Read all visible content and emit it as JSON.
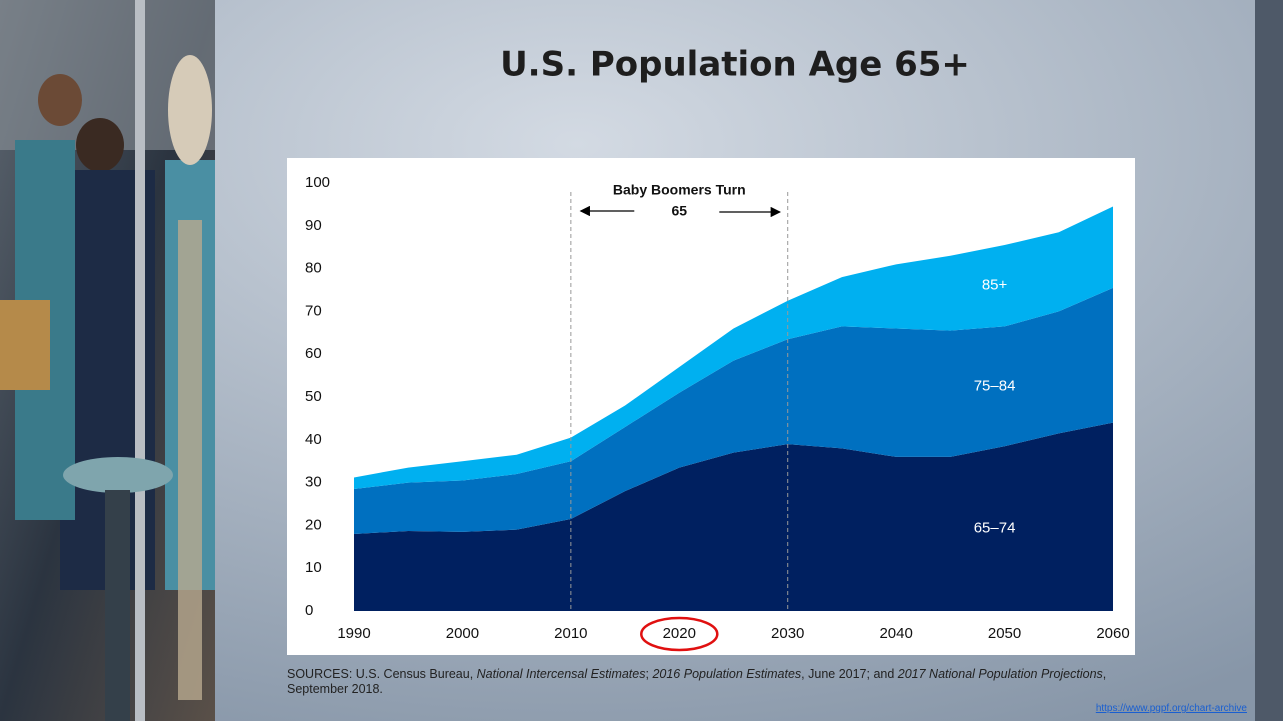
{
  "title": "U.S. Population Age 65+",
  "chart_data": {
    "type": "area",
    "stacked": true,
    "x": [
      1990,
      1995,
      2000,
      2005,
      2010,
      2015,
      2020,
      2025,
      2030,
      2035,
      2040,
      2045,
      2050,
      2055,
      2060
    ],
    "series": [
      {
        "name": "65–74",
        "color": "#002060",
        "values": [
          18,
          18.7,
          18.5,
          19,
          21.5,
          28,
          33.5,
          37,
          39,
          38,
          36,
          36,
          38.5,
          41.5,
          44
        ]
      },
      {
        "name": "75–84",
        "color": "#0070c0",
        "values": [
          10.5,
          11.3,
          12,
          13,
          13.5,
          15,
          17.5,
          21.5,
          24.5,
          28.5,
          30,
          29.5,
          28,
          28.5,
          31.5
        ]
      },
      {
        "name": "85+",
        "color": "#00b0f0",
        "values": [
          2.7,
          3.5,
          4.5,
          4.5,
          5.5,
          5,
          6,
          7.5,
          9,
          11.5,
          15,
          17.5,
          19,
          18.5,
          19
        ]
      }
    ],
    "xlim": [
      1990,
      2060
    ],
    "ylim": [
      0,
      100
    ],
    "xticks": [
      1990,
      2000,
      2010,
      2020,
      2030,
      2040,
      2050,
      2060
    ],
    "yticks": [
      0,
      10,
      20,
      30,
      40,
      50,
      60,
      70,
      80,
      90,
      100
    ],
    "grid": false,
    "vlines": [
      2010,
      2030
    ],
    "annotation": [
      "Baby Boomers Turn",
      "65"
    ],
    "highlight_x": 2020
  },
  "sources": [
    {
      "text": "SOURCES: U.S. Census Bureau, ",
      "italic": false
    },
    {
      "text": "National Intercensal Estimates",
      "italic": true
    },
    {
      "text": "; ",
      "italic": false
    },
    {
      "text": "2016 Population Estimates",
      "italic": true
    },
    {
      "text": ", June 2017; and ",
      "italic": false
    },
    {
      "text": "2017 National Population Projections",
      "italic": true
    },
    {
      "text": ", September 2018.",
      "italic": false
    }
  ],
  "link": "https://www.pgpf.org/chart-archive"
}
